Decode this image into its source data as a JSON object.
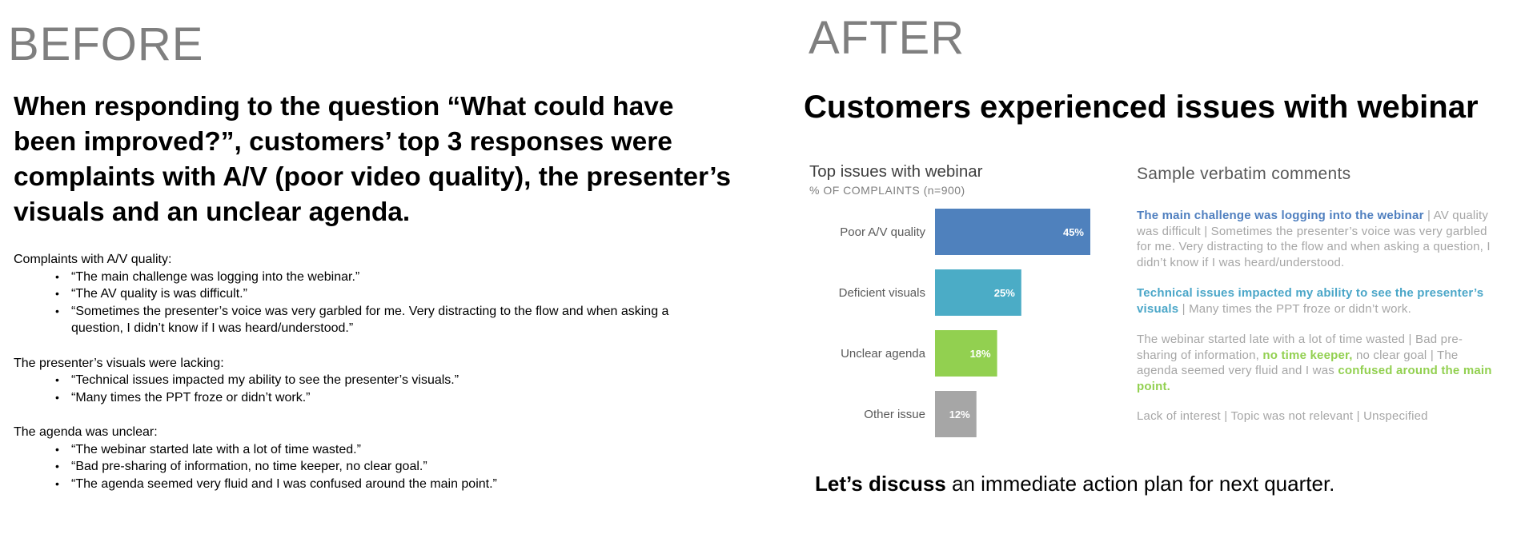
{
  "before": {
    "heading": "BEFORE",
    "title": "When responding to the question “What could have been improved?”, customers’ top 3 responses were complaints with A/V (poor video quality), the presenter’s visuals and an unclear agenda.",
    "groups": [
      {
        "label": "Complaints with A/V quality:",
        "items": [
          "“The main challenge was logging into the webinar.”",
          " “The AV quality is was difficult.”",
          "“Sometimes the presenter’s voice was very garbled for me. Very distracting to the flow and when asking a question, I didn’t know if I was heard/understood.”"
        ]
      },
      {
        "label": "The presenter’s visuals were lacking:",
        "items": [
          "“Technical issues impacted my ability to see the presenter’s visuals.”",
          "“Many times the PPT froze or didn’t work.”"
        ]
      },
      {
        "label": "The agenda was unclear:",
        "items": [
          "“The webinar started late with a lot of time wasted.”",
          " “Bad pre-sharing of information, no time keeper, no clear goal.”",
          "“The agenda seemed very fluid and I was confused around the main point.”"
        ]
      }
    ]
  },
  "after": {
    "heading": "AFTER",
    "title": "Customers experienced issues with webinar",
    "verbatim_title": "Sample verbatim comments",
    "comments": {
      "c1_highlight": "The main challenge was logging into the webinar",
      "c1_rest": " | AV quality was difficult | Sometimes the presenter’s voice was very garbled for me. Very distracting to the flow and when asking a question, I didn’t know if I was heard/understood.",
      "c2_highlight": "Technical issues impacted my ability to see the presenter’s visuals",
      "c2_rest": " | Many times the PPT froze or didn’t work.",
      "c3_part1": "The webinar started late with a lot of time wasted | Bad pre-sharing of information, ",
      "c3_highlight1": "no time keeper,",
      "c3_part2": " no clear goal | The agenda seemed very fluid and I was ",
      "c3_highlight2": "confused around the main point.",
      "c4": "Lack of interest | Topic was not relevant | Unspecified"
    },
    "cta_bold": "Let’s discuss",
    "cta_rest": " an immediate action plan for next quarter."
  },
  "colors": {
    "bar_av": "#4f81bd",
    "bar_visuals": "#4bacc6",
    "bar_agenda": "#92d050",
    "bar_other": "#a6a6a6"
  },
  "chart_data": {
    "type": "bar",
    "orientation": "horizontal",
    "title": "Top issues with webinar",
    "subtitle": "% OF COMPLAINTS (n=900)",
    "categories": [
      "Poor A/V quality",
      "Deficient visuals",
      "Unclear agenda",
      "Other issue"
    ],
    "values": [
      45,
      25,
      18,
      12
    ],
    "data_labels": [
      "45%",
      "25%",
      "18%",
      "12%"
    ],
    "colors": [
      "#4f81bd",
      "#4bacc6",
      "#92d050",
      "#a6a6a6"
    ],
    "xlim": [
      0,
      45
    ],
    "grid": false,
    "legend": "none"
  }
}
